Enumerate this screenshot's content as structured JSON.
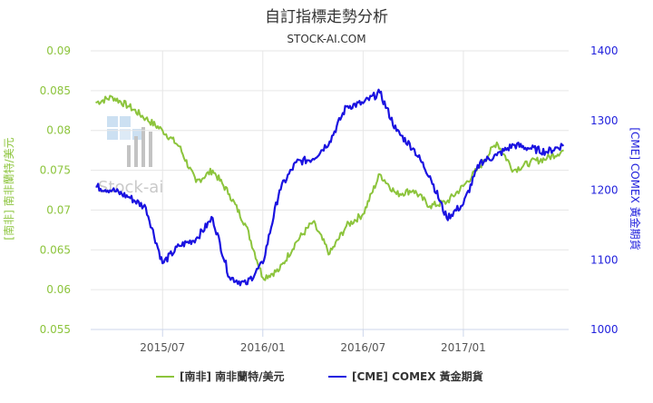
{
  "chart_data": {
    "type": "line",
    "title": "自訂指標走勢分析",
    "subtitle": "STOCK-AI.COM",
    "watermark": "Stock-ai",
    "y_left": {
      "label": "[南非] 南非蘭特/美元",
      "range": [
        0.055,
        0.09
      ],
      "ticks": [
        "0.055",
        "0.06",
        "0.065",
        "0.07",
        "0.075",
        "0.08",
        "0.085",
        "0.09"
      ],
      "color": "#8cc43c"
    },
    "y_right": {
      "label": "[CME] COMEX 黃金期貨",
      "range": [
        1000,
        1400
      ],
      "ticks": [
        "1000",
        "1100",
        "1200",
        "1300",
        "1400"
      ],
      "color": "#2222dd"
    },
    "x_ticks": [
      "2015/07",
      "2016/01",
      "2016/07",
      "2017/01"
    ],
    "legend_placement": "bottom",
    "grid": true,
    "series": [
      {
        "name": "[南非] 南非蘭特/美元",
        "axis": "left",
        "color": "#8cc43c",
        "x": [
          "2015/03",
          "2015/04",
          "2015/05",
          "2015/06",
          "2015/07",
          "2015/08",
          "2015/09",
          "2015/10",
          "2015/11",
          "2015/12",
          "2016/01",
          "2016/02",
          "2016/03",
          "2016/04",
          "2016/05",
          "2016/06",
          "2016/07",
          "2016/08",
          "2016/09",
          "2016/10",
          "2016/11",
          "2016/12",
          "2017/01",
          "2017/02",
          "2017/03",
          "2017/04",
          "2017/05",
          "2017/06",
          "2017/07"
        ],
        "values": [
          0.0835,
          0.0842,
          0.083,
          0.0815,
          0.08,
          0.078,
          0.0735,
          0.075,
          0.072,
          0.068,
          0.0615,
          0.0625,
          0.066,
          0.0685,
          0.0645,
          0.068,
          0.0695,
          0.0745,
          0.072,
          0.0725,
          0.0705,
          0.071,
          0.073,
          0.0755,
          0.0785,
          0.075,
          0.076,
          0.0765,
          0.0775
        ]
      },
      {
        "name": "[CME] COMEX 黃金期貨",
        "axis": "right",
        "color": "#1a12e0",
        "x": [
          "2015/03",
          "2015/04",
          "2015/05",
          "2015/06",
          "2015/07",
          "2015/08",
          "2015/09",
          "2015/10",
          "2015/11",
          "2015/12",
          "2016/01",
          "2016/02",
          "2016/03",
          "2016/04",
          "2016/05",
          "2016/06",
          "2016/07",
          "2016/08",
          "2016/09",
          "2016/10",
          "2016/11",
          "2016/12",
          "2017/01",
          "2017/02",
          "2017/03",
          "2017/04",
          "2017/05",
          "2017/06",
          "2017/07"
        ],
        "values": [
          1205,
          1200,
          1190,
          1175,
          1095,
          1120,
          1130,
          1160,
          1075,
          1065,
          1095,
          1200,
          1240,
          1245,
          1270,
          1320,
          1325,
          1340,
          1285,
          1260,
          1220,
          1160,
          1180,
          1240,
          1250,
          1265,
          1260,
          1255,
          1265
        ]
      }
    ]
  }
}
